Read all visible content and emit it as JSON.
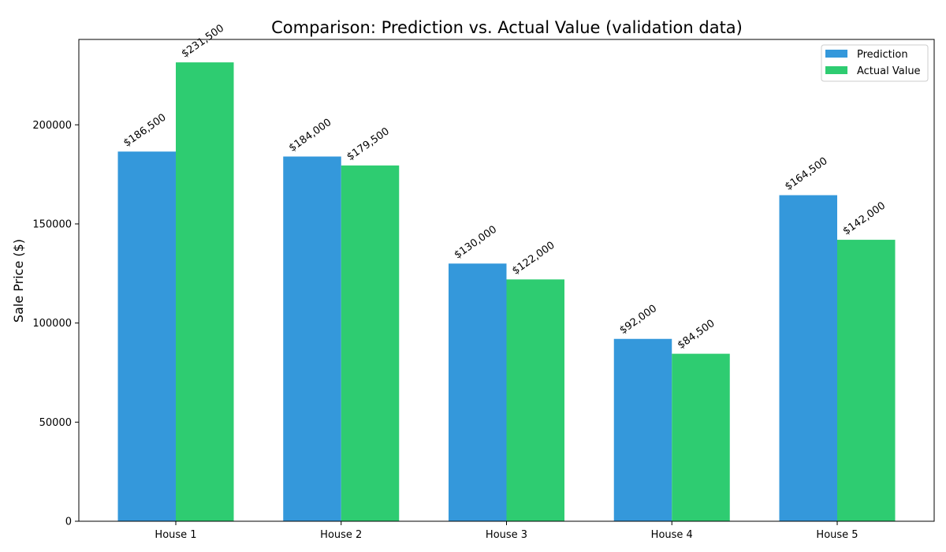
{
  "chart_data": {
    "type": "bar",
    "title": "Comparison: Prediction vs. Actual Value (validation data)",
    "xlabel": "",
    "ylabel": "Sale Price ($)",
    "categories": [
      "House 1",
      "House 2",
      "House 3",
      "House 4",
      "House 5"
    ],
    "series": [
      {
        "name": "Prediction",
        "color": "#3498db",
        "values": [
          186500,
          184000,
          130000,
          92000,
          164500
        ],
        "labels": [
          "$186,500",
          "$184,000",
          "$130,000",
          "$92,000",
          "$164,500"
        ]
      },
      {
        "name": "Actual Value",
        "color": "#2ecc71",
        "values": [
          231500,
          179500,
          122000,
          84500,
          142000
        ],
        "labels": [
          "$231,500",
          "$179,500",
          "$122,000",
          "$84,500",
          "$142,000"
        ]
      }
    ],
    "yticks": [
      0,
      50000,
      100000,
      150000,
      200000
    ],
    "ylim": [
      0,
      243075
    ],
    "grid": false,
    "legend_position": "top-right"
  }
}
